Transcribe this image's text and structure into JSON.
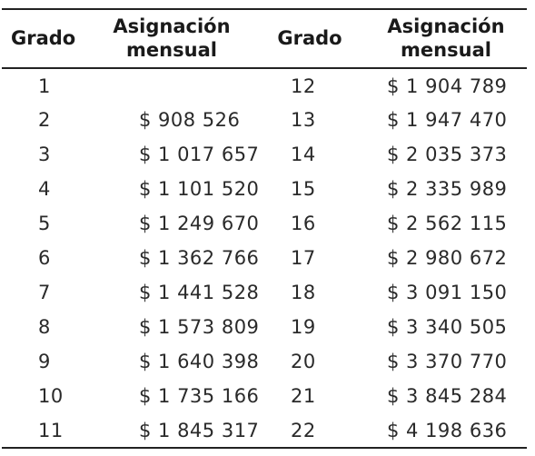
{
  "table": {
    "headers": {
      "grado": "Grado",
      "asignacion_line1": "Asignación",
      "asignacion_line2": "mensual"
    },
    "left_rows": [
      {
        "grado": "1",
        "asignacion": ""
      },
      {
        "grado": "2",
        "asignacion": "$ 908 526"
      },
      {
        "grado": "3",
        "asignacion": "$ 1 017 657"
      },
      {
        "grado": "4",
        "asignacion": "$ 1 101 520"
      },
      {
        "grado": "5",
        "asignacion": "$ 1 249 670"
      },
      {
        "grado": "6",
        "asignacion": "$ 1 362 766"
      },
      {
        "grado": "7",
        "asignacion": "$ 1 441 528"
      },
      {
        "grado": "8",
        "asignacion": "$ 1 573 809"
      },
      {
        "grado": "9",
        "asignacion": "$ 1 640 398"
      },
      {
        "grado": "10",
        "asignacion": "$ 1 735 166"
      },
      {
        "grado": "11",
        "asignacion": "$ 1 845 317"
      }
    ],
    "right_rows": [
      {
        "grado": "12",
        "asignacion": "$ 1 904 789"
      },
      {
        "grado": "13",
        "asignacion": "$ 1 947 470"
      },
      {
        "grado": "14",
        "asignacion": "$ 2 035 373"
      },
      {
        "grado": "15",
        "asignacion": "$ 2 335 989"
      },
      {
        "grado": "16",
        "asignacion": "$ 2 562 115"
      },
      {
        "grado": "17",
        "asignacion": "$ 2 980 672"
      },
      {
        "grado": "18",
        "asignacion": "$ 3 091 150"
      },
      {
        "grado": "19",
        "asignacion": "$ 3 340 505"
      },
      {
        "grado": "20",
        "asignacion": "$ 3 370 770"
      },
      {
        "grado": "21",
        "asignacion": "$ 3 845 284"
      },
      {
        "grado": "22",
        "asignacion": "$ 4 198 636"
      }
    ]
  }
}
